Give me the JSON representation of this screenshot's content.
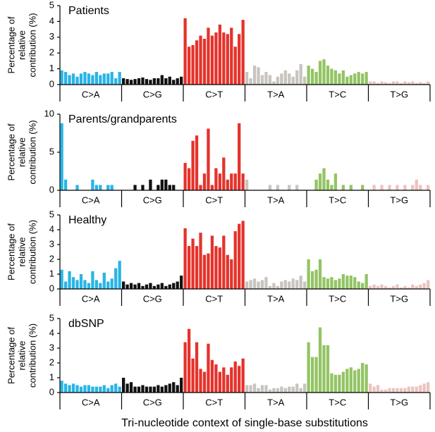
{
  "chart_data": [
    {
      "type": "bar",
      "title": "Patients",
      "ylabel_lines": [
        "Percentage of",
        "relative",
        "contribution (%)"
      ],
      "ylim": [
        0,
        5
      ],
      "yticks": [
        0,
        1,
        2,
        3,
        4,
        5
      ],
      "series": [
        {
          "name": "C>A",
          "color": "#2ab4e6",
          "values": [
            0.9,
            0.8,
            0.6,
            0.7,
            0.5,
            0.7,
            0.8,
            0.7,
            0.6,
            0.8,
            0.6,
            0.7,
            0.7,
            0.8,
            0.4,
            0.8
          ]
        },
        {
          "name": "C>G",
          "color": "#111111",
          "values": [
            0.4,
            0.35,
            0.3,
            0.35,
            0.4,
            0.45,
            0.35,
            0.3,
            0.4,
            0.4,
            0.6,
            0.4,
            0.5,
            0.3,
            0.4,
            0.5
          ]
        },
        {
          "name": "C>T",
          "color": "#e5322b",
          "values": [
            4.2,
            2.4,
            2.5,
            2.8,
            3.1,
            2.9,
            3.6,
            3.1,
            3.3,
            3.8,
            3.3,
            3.2,
            3.6,
            2.4,
            3.2,
            4.1
          ]
        },
        {
          "name": "T>A",
          "color": "#c8c4bf",
          "values": [
            0.8,
            0.4,
            1.2,
            1.1,
            0.6,
            0.8,
            0.6,
            0.2,
            0.5,
            0.7,
            0.9,
            0.7,
            0.5,
            0.9,
            1.3,
            0.5
          ]
        },
        {
          "name": "T>C",
          "color": "#93c464",
          "values": [
            1.2,
            1.0,
            0.8,
            1.5,
            1.6,
            1.2,
            1.0,
            0.9,
            0.7,
            0.9,
            0.5,
            0.6,
            0.7,
            0.8,
            0.7,
            0.8
          ]
        },
        {
          "name": "T>G",
          "color": "#ecc3bf",
          "values": [
            0.2,
            0.2,
            0.1,
            0.2,
            0.15,
            0.1,
            0.2,
            0.2,
            0.1,
            0.2,
            0.15,
            0.2,
            0.1,
            0.15,
            0.1,
            0.2
          ]
        }
      ]
    },
    {
      "type": "bar",
      "title": "Parents/grandparents",
      "ylabel_lines": [
        "Percentage of",
        "relative",
        "contribution (%)"
      ],
      "ylim": [
        0,
        10
      ],
      "yticks": [
        0,
        5,
        10
      ],
      "series": [
        {
          "name": "C>A",
          "color": "#2ab4e6",
          "values": [
            8.8,
            1.4,
            0,
            0,
            0.7,
            0,
            0,
            0,
            1.4,
            0.7,
            0.7,
            0,
            0.7,
            0.7,
            0,
            0
          ]
        },
        {
          "name": "C>G",
          "color": "#111111",
          "values": [
            0,
            0,
            0,
            0.7,
            0,
            0.7,
            0,
            1.4,
            0,
            0.7,
            1.4,
            1.4,
            0.7,
            0.7,
            0,
            0
          ]
        },
        {
          "name": "C>T",
          "color": "#e5322b",
          "values": [
            3.6,
            2.9,
            6.5,
            7.2,
            0.7,
            2.2,
            8.1,
            0.7,
            2.9,
            2.2,
            4.3,
            1.4,
            2.2,
            2.2,
            8.8,
            2.2
          ]
        },
        {
          "name": "T>A",
          "color": "#c8c4bf",
          "values": [
            1.4,
            0,
            0,
            0,
            0,
            0,
            0.7,
            0,
            0.7,
            0,
            0,
            0.7,
            0,
            0.7,
            0,
            0
          ]
        },
        {
          "name": "T>C",
          "color": "#93c464",
          "values": [
            0,
            0,
            1.4,
            2.2,
            2.9,
            1.4,
            0.7,
            2.2,
            0,
            0.7,
            0,
            0.7,
            0,
            0,
            0.7,
            0
          ]
        },
        {
          "name": "T>G",
          "color": "#ecc3bf",
          "values": [
            0,
            0.7,
            0,
            0.7,
            0,
            0.7,
            0,
            0.7,
            0,
            0.7,
            0,
            0.7,
            1.4,
            0.7,
            0,
            0.7
          ]
        }
      ]
    },
    {
      "type": "bar",
      "title": "Healthy",
      "ylabel_lines": [
        "Percentage of",
        "relative",
        "contribution (%)"
      ],
      "ylim": [
        0,
        5
      ],
      "yticks": [
        0,
        1,
        2,
        3,
        4,
        5
      ],
      "series": [
        {
          "name": "C>A",
          "color": "#2ab4e6",
          "values": [
            1.3,
            0.5,
            1.2,
            0.8,
            0.6,
            1.0,
            0.6,
            0.4,
            1.2,
            0.6,
            0.4,
            1.1,
            0.5,
            0.7,
            1.4,
            1.9
          ]
        },
        {
          "name": "C>G",
          "color": "#111111",
          "values": [
            0.5,
            0.3,
            0.4,
            0.3,
            0.4,
            0.2,
            0.3,
            0.4,
            0.2,
            0.3,
            0.4,
            0.2,
            0.3,
            0.4,
            0.5,
            0.9
          ]
        },
        {
          "name": "C>T",
          "color": "#e5322b",
          "values": [
            4.1,
            2.9,
            3.4,
            2.9,
            3.8,
            2.3,
            2.4,
            3.6,
            2.9,
            2.8,
            3.6,
            2.3,
            2.0,
            3.9,
            4.4,
            4.6
          ]
        },
        {
          "name": "T>A",
          "color": "#c8c4bf",
          "values": [
            0.5,
            0.6,
            0.7,
            0.5,
            0.6,
            0.8,
            0.2,
            0.4,
            0.2,
            0.5,
            0.6,
            0.5,
            0.7,
            0.6,
            0.9,
            0.5
          ]
        },
        {
          "name": "T>C",
          "color": "#93c464",
          "values": [
            2.0,
            1.2,
            1.3,
            2.0,
            0.8,
            0.7,
            0.8,
            0.6,
            0.7,
            1.0,
            0.9,
            0.9,
            0.8,
            0.5,
            0.4,
            1.0
          ]
        },
        {
          "name": "T>G",
          "color": "#ecc3bf",
          "values": [
            0.2,
            0.3,
            0.2,
            0.3,
            0.2,
            0.1,
            0.2,
            0.3,
            0.1,
            0.2,
            0.1,
            0.3,
            0.2,
            0.3,
            0.4,
            0.6
          ]
        }
      ]
    },
    {
      "type": "bar",
      "title": "dbSNP",
      "ylabel_lines": [
        "Percentage of",
        "relative",
        "contribution (%)"
      ],
      "ylim": [
        0,
        5
      ],
      "yticks": [
        0,
        1,
        2,
        3,
        4,
        5
      ],
      "series": [
        {
          "name": "C>A",
          "color": "#2ab4e6",
          "values": [
            0.8,
            0.6,
            0.5,
            0.6,
            0.5,
            0.4,
            0.5,
            0.5,
            0.4,
            0.4,
            0.4,
            0.5,
            0.3,
            0.5,
            0.6,
            0.4
          ]
        },
        {
          "name": "C>G",
          "color": "#111111",
          "values": [
            1.0,
            0.6,
            0.7,
            0.4,
            0.4,
            0.5,
            0.4,
            0.4,
            0.4,
            0.5,
            0.4,
            0.5,
            0.6,
            0.7,
            0.5,
            1.0
          ]
        },
        {
          "name": "C>T",
          "color": "#e5322b",
          "values": [
            3.4,
            4.3,
            2.3,
            3.4,
            1.6,
            1.4,
            3.3,
            2.2,
            1.9,
            1.4,
            1.7,
            1.2,
            1.7,
            2.1,
            1.8,
            2.3
          ]
        },
        {
          "name": "T>A",
          "color": "#c8c4bf",
          "values": [
            0.5,
            0.5,
            0.6,
            0.3,
            0.5,
            0.5,
            0.2,
            0.3,
            0.3,
            0.4,
            0.3,
            0.4,
            0.4,
            0.6,
            0.3,
            0.6
          ]
        },
        {
          "name": "T>C",
          "color": "#93c464",
          "values": [
            3.4,
            2.4,
            2.4,
            4.4,
            3.2,
            3.2,
            1.3,
            1.2,
            1.2,
            1.4,
            1.6,
            1.7,
            1.5,
            1.6,
            2.0,
            1.9
          ]
        },
        {
          "name": "T>G",
          "color": "#ecc3bf",
          "values": [
            0.6,
            0.4,
            0.5,
            0.2,
            0.2,
            0.3,
            0.3,
            0.3,
            0.3,
            0.3,
            0.4,
            0.4,
            0.4,
            0.5,
            0.6,
            0.7
          ]
        }
      ]
    }
  ],
  "figure": {
    "xlabel": "Tri-nucleotide context of single-base substitutions"
  }
}
